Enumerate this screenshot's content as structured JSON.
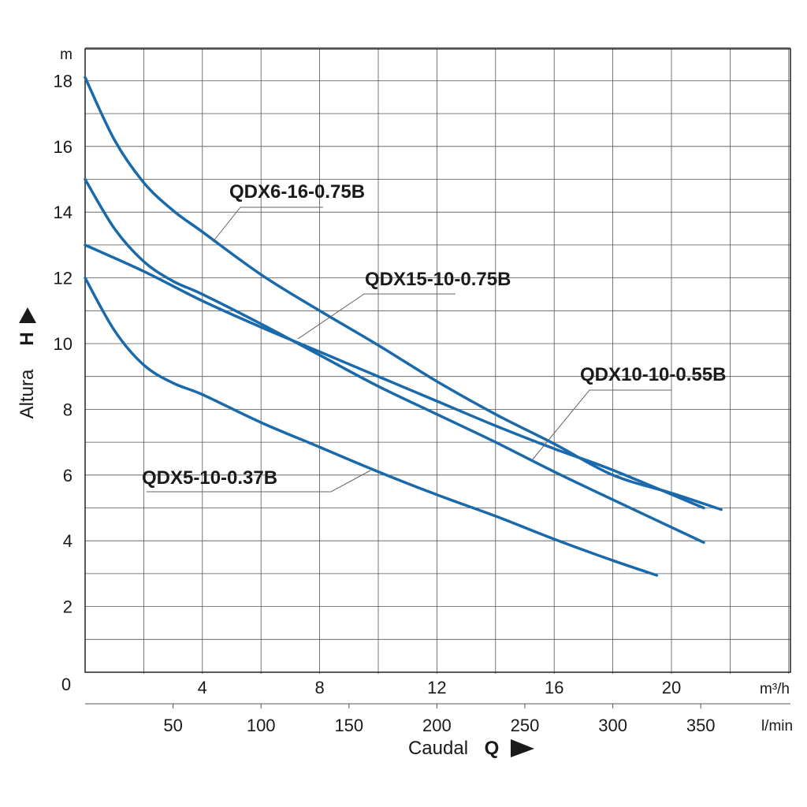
{
  "chart_data": {
    "type": "line",
    "title": "",
    "ylabel": "Altura",
    "ylabel_symbol": "H",
    "y_unit": "m",
    "ylim": [
      0,
      19
    ],
    "y_ticks": [
      0,
      2,
      4,
      6,
      8,
      10,
      12,
      14,
      16,
      18
    ],
    "y_tick_labels": [
      "0",
      "2",
      "4",
      "6",
      "8",
      "10",
      "12",
      "14",
      "16",
      "18"
    ],
    "xlabel": "Caudal",
    "xlabel_symbol": "Q",
    "x_unit": "m³/h",
    "xlim": [
      0,
      24
    ],
    "x_ticks": [
      4,
      8,
      12,
      16,
      20
    ],
    "x_tick_labels": [
      "4",
      "8",
      "12",
      "16",
      "20"
    ],
    "x2_unit": "l/min",
    "x2_ticks": [
      50,
      100,
      150,
      200,
      250,
      300,
      350
    ],
    "x2_tick_labels": [
      "50",
      "100",
      "150",
      "200",
      "250",
      "300",
      "350"
    ],
    "grid": true,
    "series": [
      {
        "name": "QDX6-16-0.75B",
        "color": "#1a6aab",
        "x": [
          0,
          1,
          2,
          3,
          4,
          6,
          8,
          10,
          12,
          14,
          16,
          18,
          20,
          21.7
        ],
        "y": [
          18.1,
          16.2,
          14.9,
          14.05,
          13.4,
          12.1,
          11.0,
          9.95,
          8.85,
          7.85,
          6.95,
          6.0,
          5.45,
          4.95
        ]
      },
      {
        "name": "QDX15-10-0.75B",
        "color": "#1a6aab",
        "x": [
          0,
          2,
          4,
          6,
          8,
          10,
          12,
          14,
          16,
          18,
          21.1
        ],
        "y": [
          13.0,
          12.2,
          11.3,
          10.5,
          9.75,
          9.0,
          8.25,
          7.5,
          6.8,
          6.15,
          5.0
        ]
      },
      {
        "name": "QDX10-10-0.55B",
        "color": "#1a6aab",
        "x": [
          0,
          1,
          2,
          3,
          4,
          6,
          8,
          10,
          12,
          14,
          16,
          18,
          21.1
        ],
        "y": [
          15.0,
          13.5,
          12.5,
          11.9,
          11.5,
          10.6,
          9.65,
          8.7,
          7.85,
          7.0,
          6.1,
          5.25,
          3.95
        ]
      },
      {
        "name": "QDX5-10-0.37B",
        "color": "#1a6aab",
        "x": [
          0,
          1,
          2,
          3,
          4,
          6,
          8,
          10,
          12,
          14,
          16,
          18,
          19.5
        ],
        "y": [
          12.0,
          10.4,
          9.35,
          8.8,
          8.45,
          7.6,
          6.85,
          6.1,
          5.4,
          4.75,
          4.05,
          3.4,
          2.95
        ]
      }
    ]
  }
}
